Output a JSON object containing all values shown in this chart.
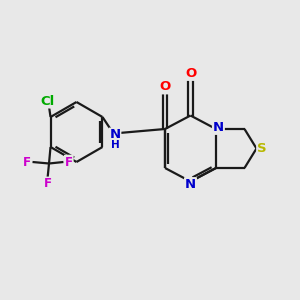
{
  "background_color": "#e8e8e8",
  "bond_color": "#1a1a1a",
  "bond_lw": 1.6,
  "atom_colors": {
    "O": "#ff0000",
    "N": "#0000cc",
    "S": "#b8b800",
    "Cl": "#00aa00",
    "F": "#cc00cc",
    "NH": "#0000cc"
  },
  "font_size": 8.5,
  "dpi": 100
}
